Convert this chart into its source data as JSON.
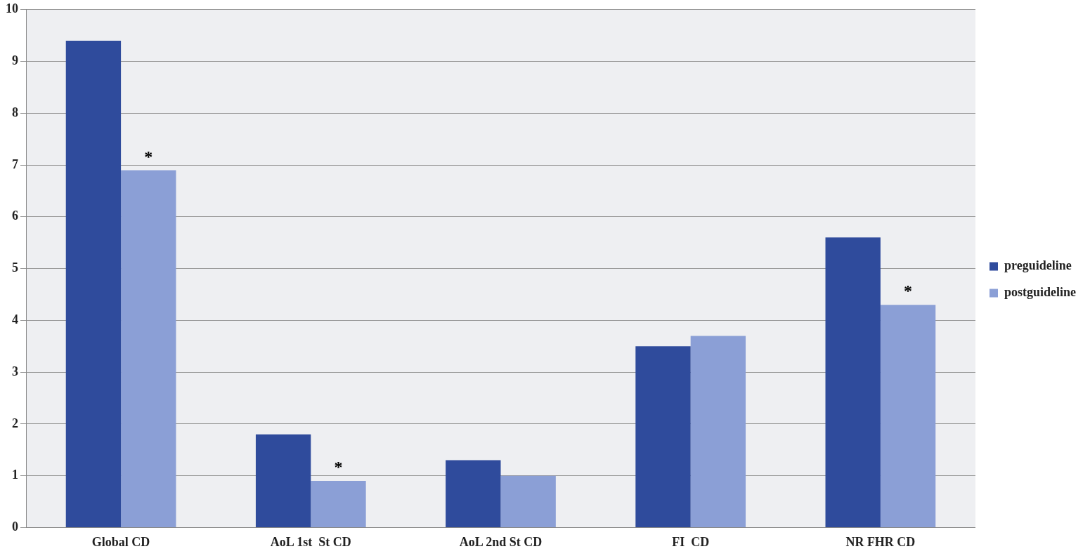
{
  "chart_data": {
    "type": "bar",
    "categories": [
      "Global CD",
      "AoL 1st  St CD",
      "AoL 2nd St CD",
      "FI  CD",
      "NR FHR CD"
    ],
    "series": [
      {
        "name": "preguideline",
        "color": "#2f4b9c",
        "values": [
          9.4,
          1.8,
          1.3,
          3.5,
          5.6
        ]
      },
      {
        "name": "postguideline",
        "color": "#8b9fd6",
        "values": [
          6.9,
          0.9,
          1.0,
          3.7,
          4.3
        ]
      }
    ],
    "ylim": [
      0,
      10
    ],
    "yticks": [
      0,
      1,
      2,
      3,
      4,
      5,
      6,
      7,
      8,
      9,
      10
    ],
    "grid": "y",
    "legend": "right",
    "annotations": [
      {
        "text": "*",
        "x": "Global CD",
        "y": 6.9
      },
      {
        "text": "*",
        "x": "AoL 1st  St CD",
        "y": 0.9
      },
      {
        "text": "*",
        "x": "NR FHR CD",
        "y": 4.3
      }
    ]
  }
}
